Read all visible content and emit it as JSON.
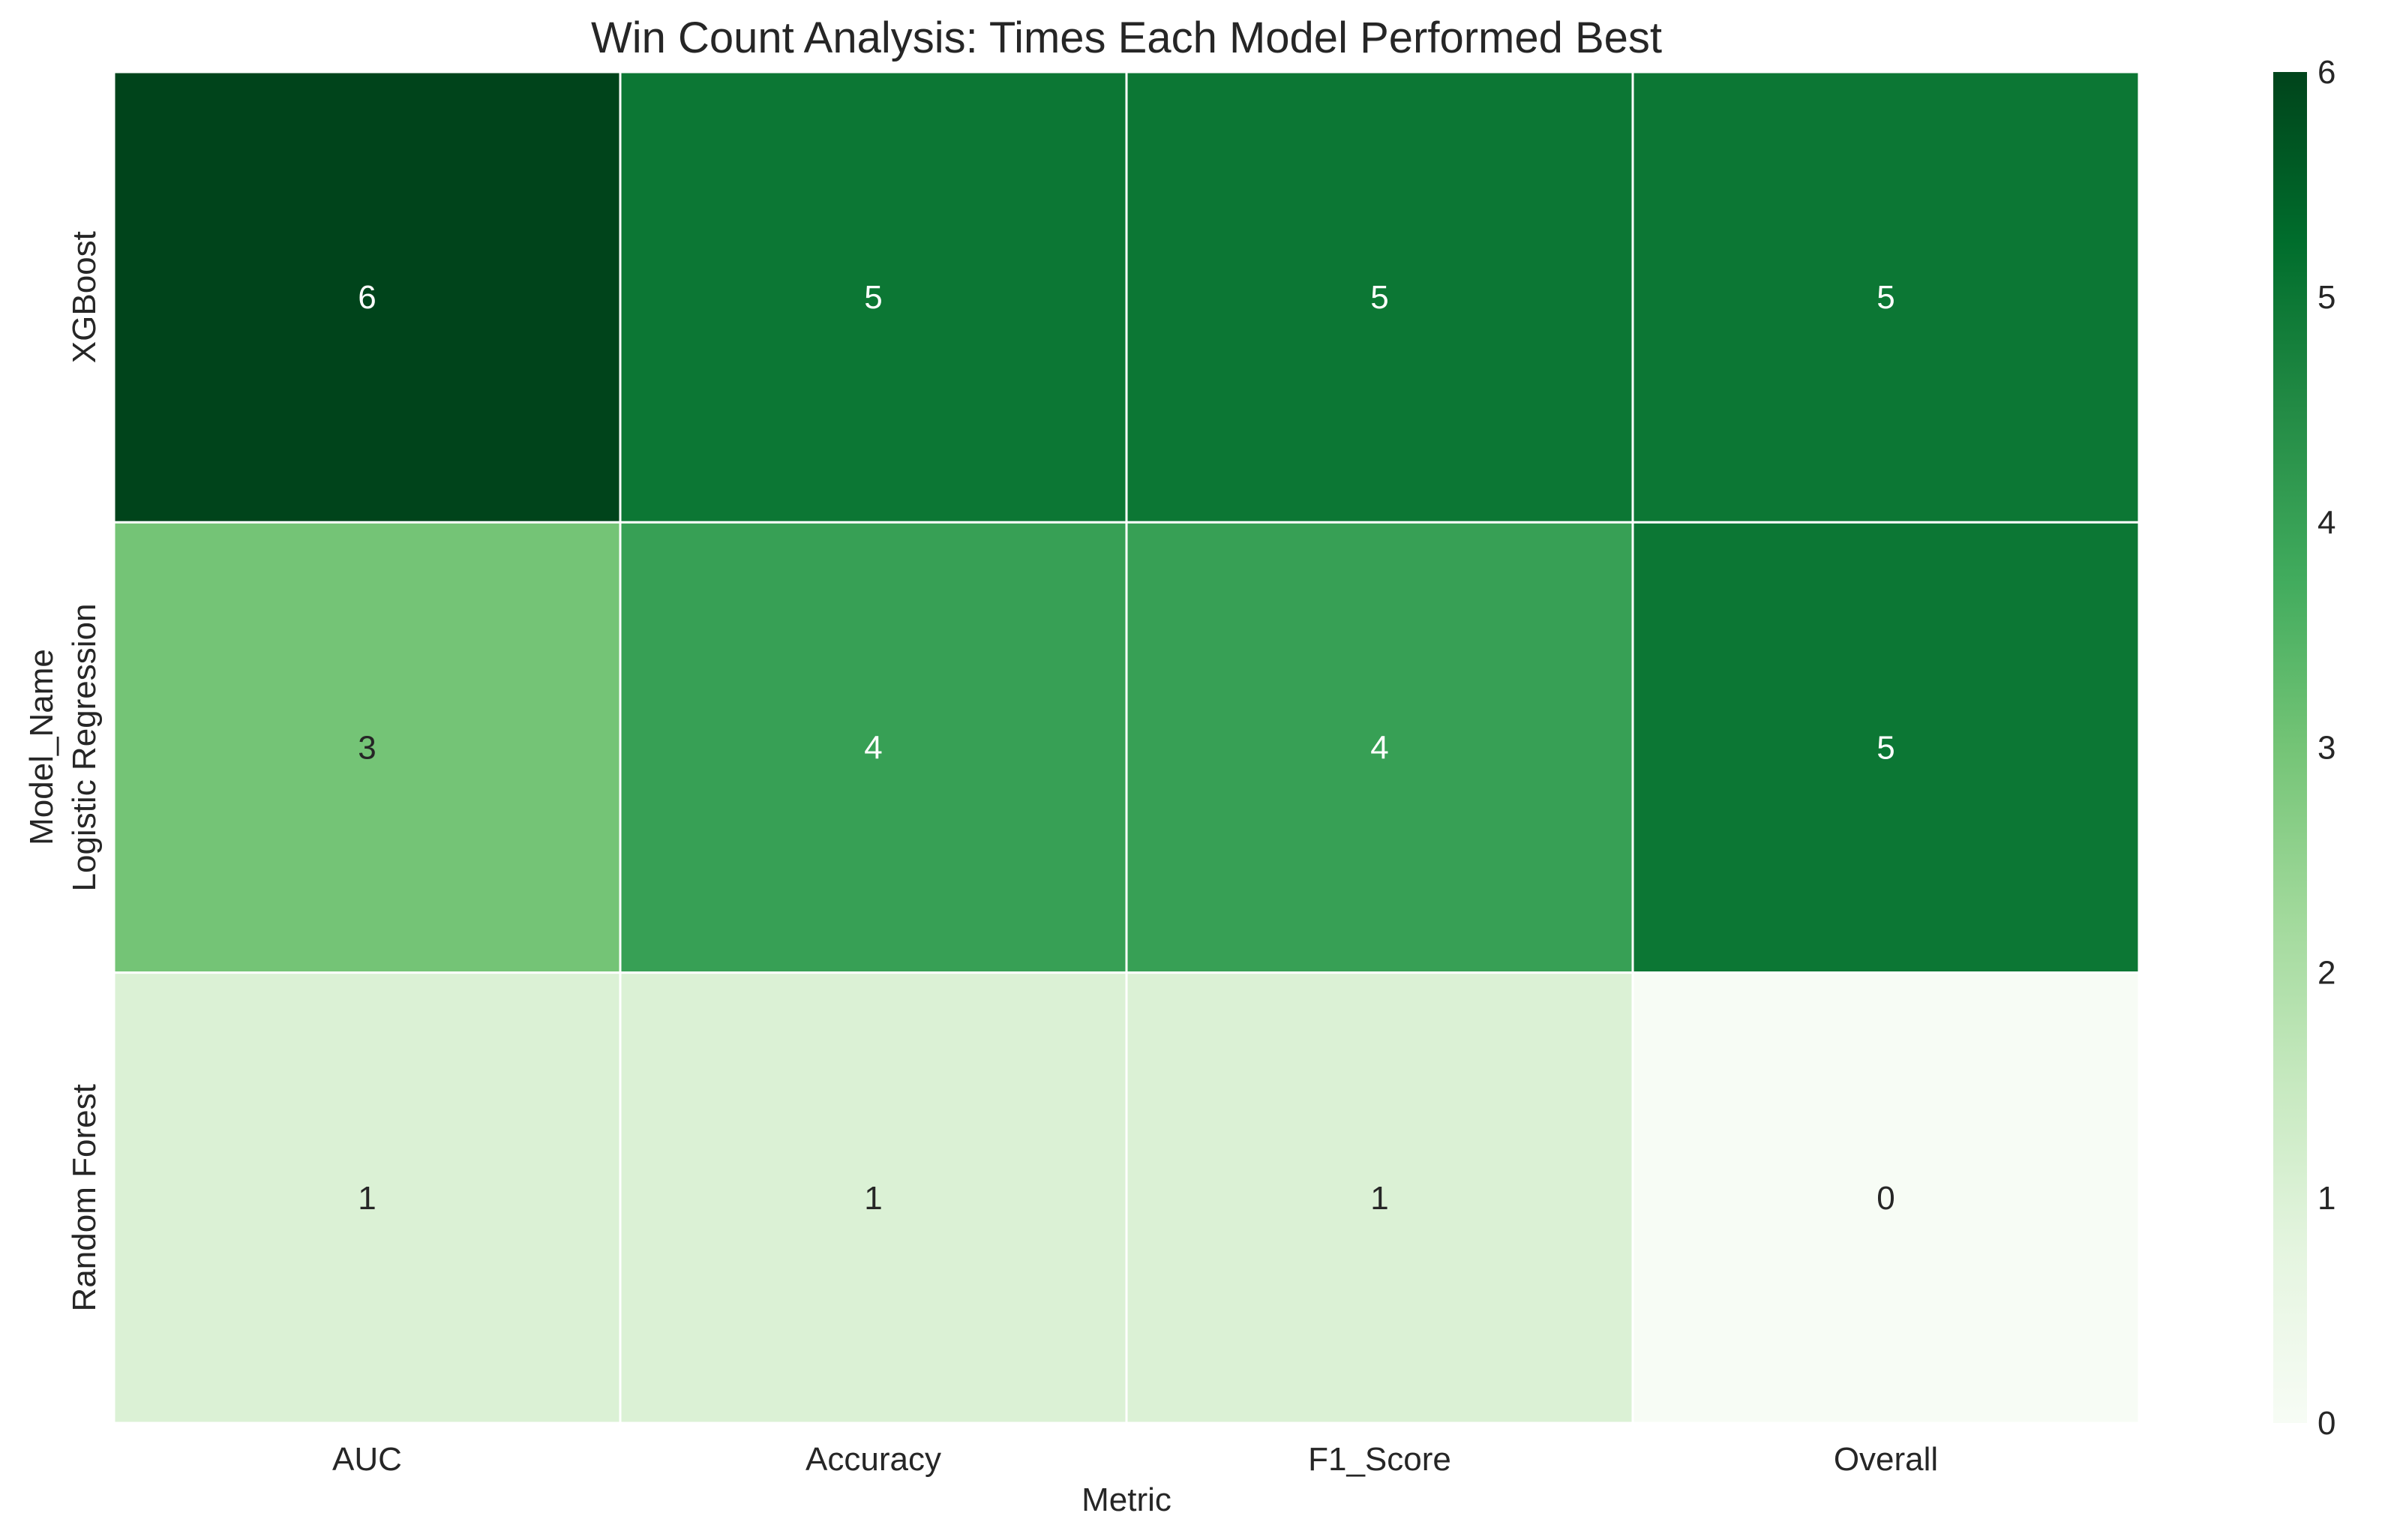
{
  "chart_data": {
    "type": "heatmap",
    "title": "Win Count Analysis: Times Each Model Performed Best",
    "xlabel": "Metric",
    "ylabel": "Model_Name",
    "x_categories": [
      "AUC",
      "Accuracy",
      "F1_Score",
      "Overall"
    ],
    "y_categories": [
      "XGBoost",
      "Logistic Regression",
      "Random Forest"
    ],
    "values": [
      [
        6,
        5,
        5,
        5
      ],
      [
        3,
        4,
        4,
        5
      ],
      [
        1,
        1,
        1,
        0
      ]
    ],
    "colorbar": {
      "range": [
        0,
        6
      ],
      "ticks": [
        0,
        1,
        2,
        3,
        4,
        5,
        6
      ],
      "colormap": "Greens",
      "colors": [
        "#f7fcf5",
        "#e5f5e0",
        "#c7e9c0",
        "#a1d99b",
        "#74c476",
        "#41ab5d",
        "#238b45",
        "#006d2c",
        "#00441b"
      ]
    },
    "annotations": true,
    "cell_border_color": "#ffffff",
    "grid": false
  }
}
